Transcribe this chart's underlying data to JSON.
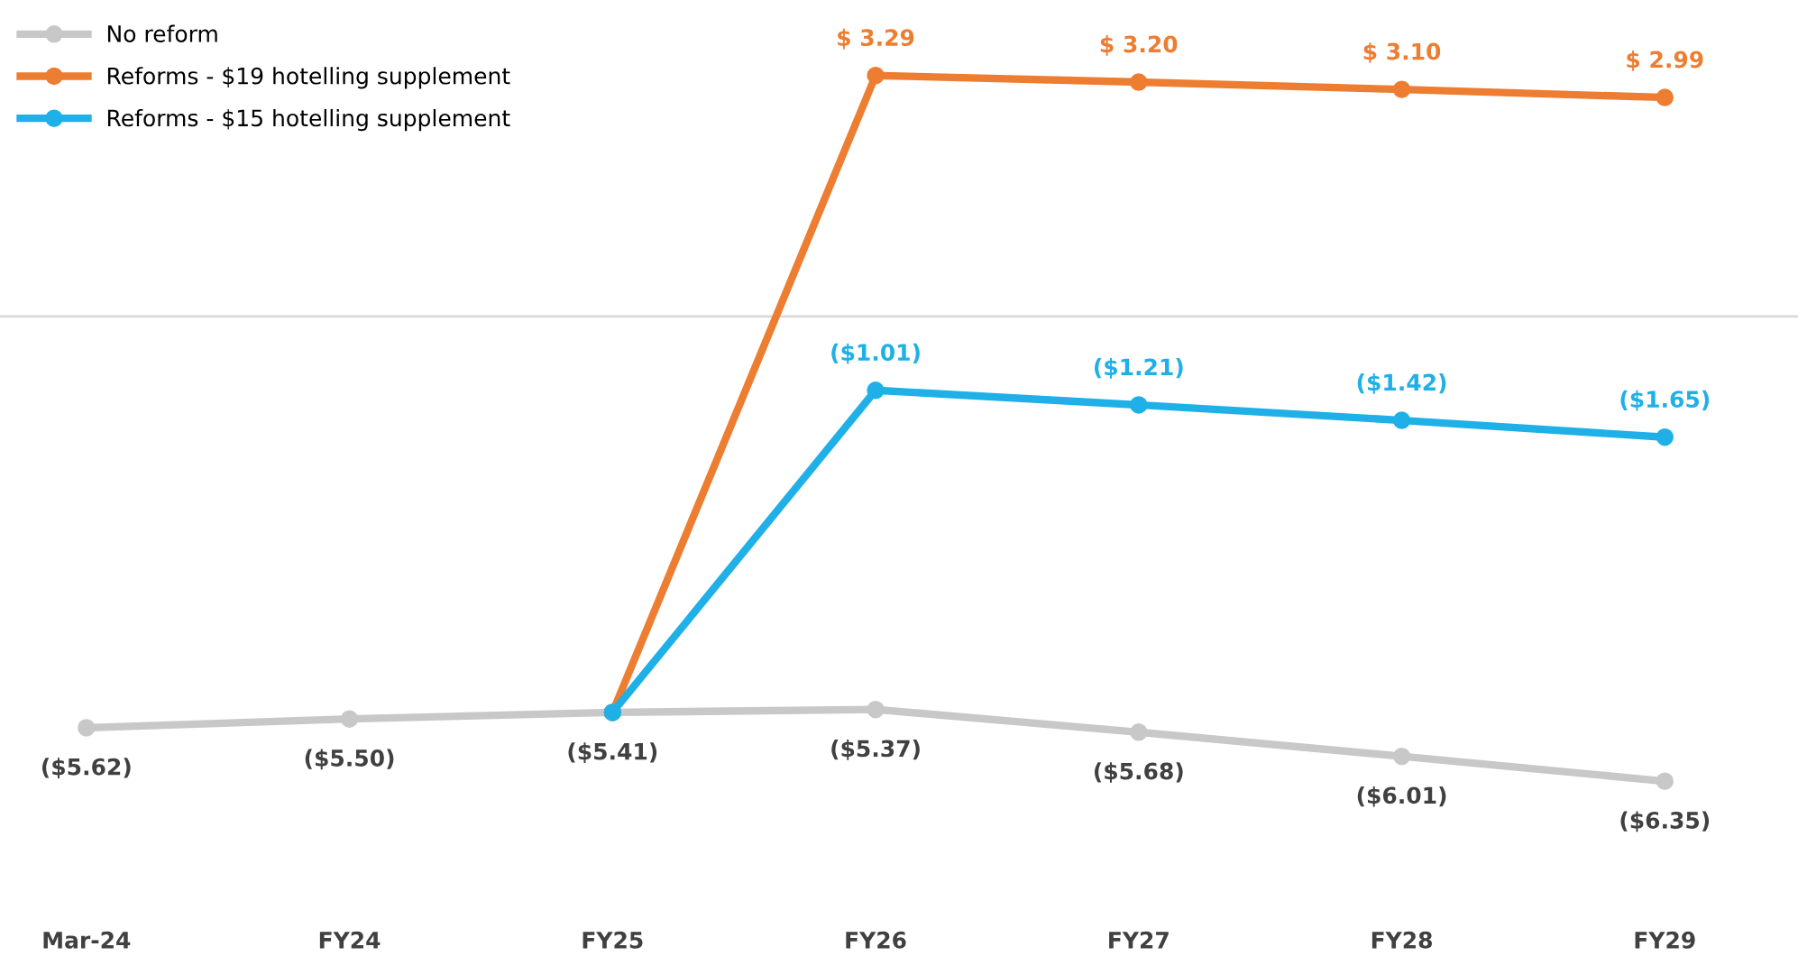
{
  "chart_data": {
    "type": "line",
    "categories": [
      "Mar-24",
      "FY24",
      "FY25",
      "FY26",
      "FY27",
      "FY28",
      "FY29"
    ],
    "series": [
      {
        "name": "No reform",
        "color": "#c8c8c8",
        "values": [
          -5.62,
          -5.5,
          -5.41,
          -5.37,
          -5.68,
          -6.01,
          -6.35
        ],
        "value_labels": [
          "($5.62)",
          "($5.50)",
          "($5.41)",
          "($5.37)",
          "($5.68)",
          "($6.01)",
          "($6.35)"
        ]
      },
      {
        "name": "Reforms - $19 hotelling supplement",
        "color": "#ed7d31",
        "values": [
          null,
          null,
          -5.41,
          3.29,
          3.2,
          3.1,
          2.99
        ],
        "value_labels": [
          null,
          null,
          null,
          "$ 3.29",
          "$ 3.20",
          "$ 3.10",
          "$ 2.99"
        ]
      },
      {
        "name": "Reforms - $15 hotelling supplement",
        "color": "#1fb0e8",
        "values": [
          null,
          null,
          -5.41,
          -1.01,
          -1.21,
          -1.42,
          -1.65
        ],
        "value_labels": [
          null,
          null,
          null,
          "($1.01)",
          "($1.21)",
          "($1.42)",
          "($1.65)"
        ]
      }
    ],
    "tick_labels": "x",
    "ref_lines": [
      {
        "axis": "y",
        "value": 0,
        "color": "#d9d9d9"
      }
    ],
    "marker": "circle",
    "line_style": "solid",
    "legend": "top left",
    "grid": false
  }
}
